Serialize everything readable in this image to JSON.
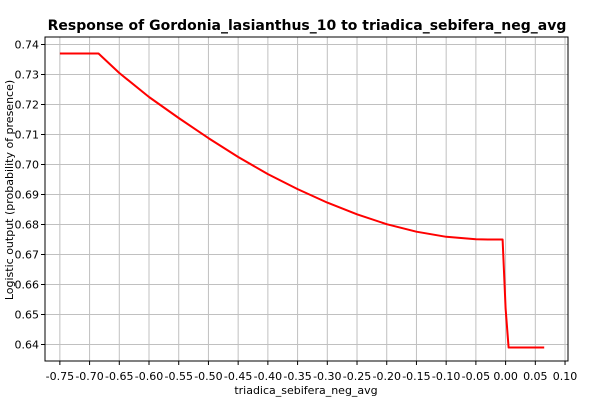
{
  "chart_data": {
    "type": "line",
    "title": "Response of Gordonia_lasianthus_10 to triadica_sebifera_neg_avg",
    "xlabel": "triadica_sebifera_neg_avg",
    "ylabel": "Logistic output (probability of presence)",
    "xlim": [
      -0.775,
      0.105
    ],
    "ylim": [
      0.6345,
      0.7425
    ],
    "x_ticks": [
      -0.75,
      -0.7,
      -0.65,
      -0.6,
      -0.55,
      -0.5,
      -0.45,
      -0.4,
      -0.35,
      -0.3,
      -0.25,
      -0.2,
      -0.15,
      -0.1,
      -0.05,
      0.0,
      0.05,
      0.1
    ],
    "x_tick_labels": [
      "-0.75",
      "-0.70",
      "-0.65",
      "-0.60",
      "-0.55",
      "-0.50",
      "-0.45",
      "-0.40",
      "-0.35",
      "-0.30",
      "-0.25",
      "-0.20",
      "-0.15",
      "-0.10",
      "-0.05",
      "0.00",
      "0.05",
      "0.10"
    ],
    "y_ticks": [
      0.64,
      0.65,
      0.66,
      0.67,
      0.68,
      0.69,
      0.7,
      0.71,
      0.72,
      0.73,
      0.74
    ],
    "y_tick_labels": [
      "0.64",
      "0.65",
      "0.66",
      "0.67",
      "0.68",
      "0.69",
      "0.70",
      "0.71",
      "0.72",
      "0.73",
      "0.74"
    ],
    "grid": true,
    "line_color": "#ff0000",
    "series": [
      {
        "x": [
          -0.75,
          -0.7,
          -0.685,
          -0.65,
          -0.6,
          -0.55,
          -0.5,
          -0.45,
          -0.4,
          -0.35,
          -0.3,
          -0.25,
          -0.2,
          -0.15,
          -0.1,
          -0.05,
          -0.03,
          -0.005,
          0.0,
          0.005,
          0.065
        ],
        "y": [
          0.737,
          0.737,
          0.737,
          0.7305,
          0.7225,
          0.7155,
          0.7088,
          0.7025,
          0.6968,
          0.6918,
          0.6873,
          0.6834,
          0.6801,
          0.6776,
          0.6759,
          0.6751,
          0.675,
          0.675,
          0.652,
          0.639,
          0.639
        ]
      }
    ]
  }
}
